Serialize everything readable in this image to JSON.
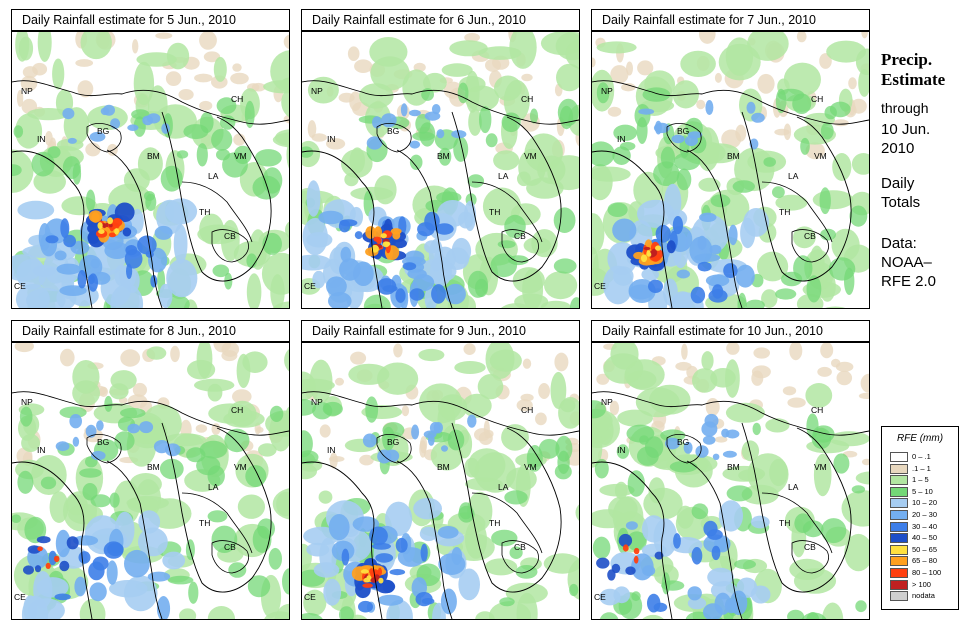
{
  "colors": {
    "c0": "#ffffff",
    "c1": "#e8d8bf",
    "c2": "#b2e6a2",
    "c3": "#74d877",
    "c4": "#a6cdf2",
    "c5": "#73aef0",
    "c6": "#3d7ee8",
    "c7": "#1e4fc8",
    "c8": "#ffe040",
    "c9": "#ffa020",
    "c10": "#ff4010",
    "c11": "#c02020",
    "c12": "#cfcfcf"
  },
  "panels": [
    {
      "title": "Daily Rainfall estimate for  5 Jun., 2010",
      "level": "wet"
    },
    {
      "title": "Daily Rainfall estimate for  6 Jun., 2010",
      "level": "wet"
    },
    {
      "title": "Daily Rainfall estimate for  7 Jun., 2010",
      "level": "med"
    },
    {
      "title": "Daily Rainfall estimate for  8 Jun., 2010",
      "level": "low"
    },
    {
      "title": "Daily Rainfall estimate for  9 Jun., 2010",
      "level": "med"
    },
    {
      "title": "Daily Rainfall estimate for  10 Jun., 2010",
      "level": "low"
    }
  ],
  "map_labels": [
    "NP",
    "CH",
    "IN",
    "BG",
    "BM",
    "VM",
    "LA",
    "TH",
    "CB",
    "CE"
  ],
  "sidebar": {
    "title_line1": "Precip.",
    "title_line2": "Estimate",
    "through": "through",
    "date_line1": "10 Jun.",
    "date_line2": "2010",
    "daily_line1": "Daily",
    "daily_line2": "Totals",
    "data_line1": "Data:",
    "data_line2": "NOAA–",
    "data_line3": "RFE 2.0"
  },
  "legend": {
    "title": "RFE (mm)",
    "items": [
      {
        "label": "0 – .1",
        "color": "#ffffff"
      },
      {
        "label": ".1 – 1",
        "color": "#e8d8bf"
      },
      {
        "label": "1 – 5",
        "color": "#b2e6a2"
      },
      {
        "label": "5 – 10",
        "color": "#74d877"
      },
      {
        "label": "10 – 20",
        "color": "#a6cdf2"
      },
      {
        "label": "20 – 30",
        "color": "#73aef0"
      },
      {
        "label": "30 – 40",
        "color": "#3d7ee8"
      },
      {
        "label": "40 – 50",
        "color": "#1e4fc8"
      },
      {
        "label": "50 – 65",
        "color": "#ffe040"
      },
      {
        "label": "65 – 80",
        "color": "#ffa020"
      },
      {
        "label": "80 – 100",
        "color": "#ff4010"
      },
      {
        "label": "> 100",
        "color": "#c02020"
      },
      {
        "label": "nodata",
        "color": "#cfcfcf"
      }
    ]
  }
}
